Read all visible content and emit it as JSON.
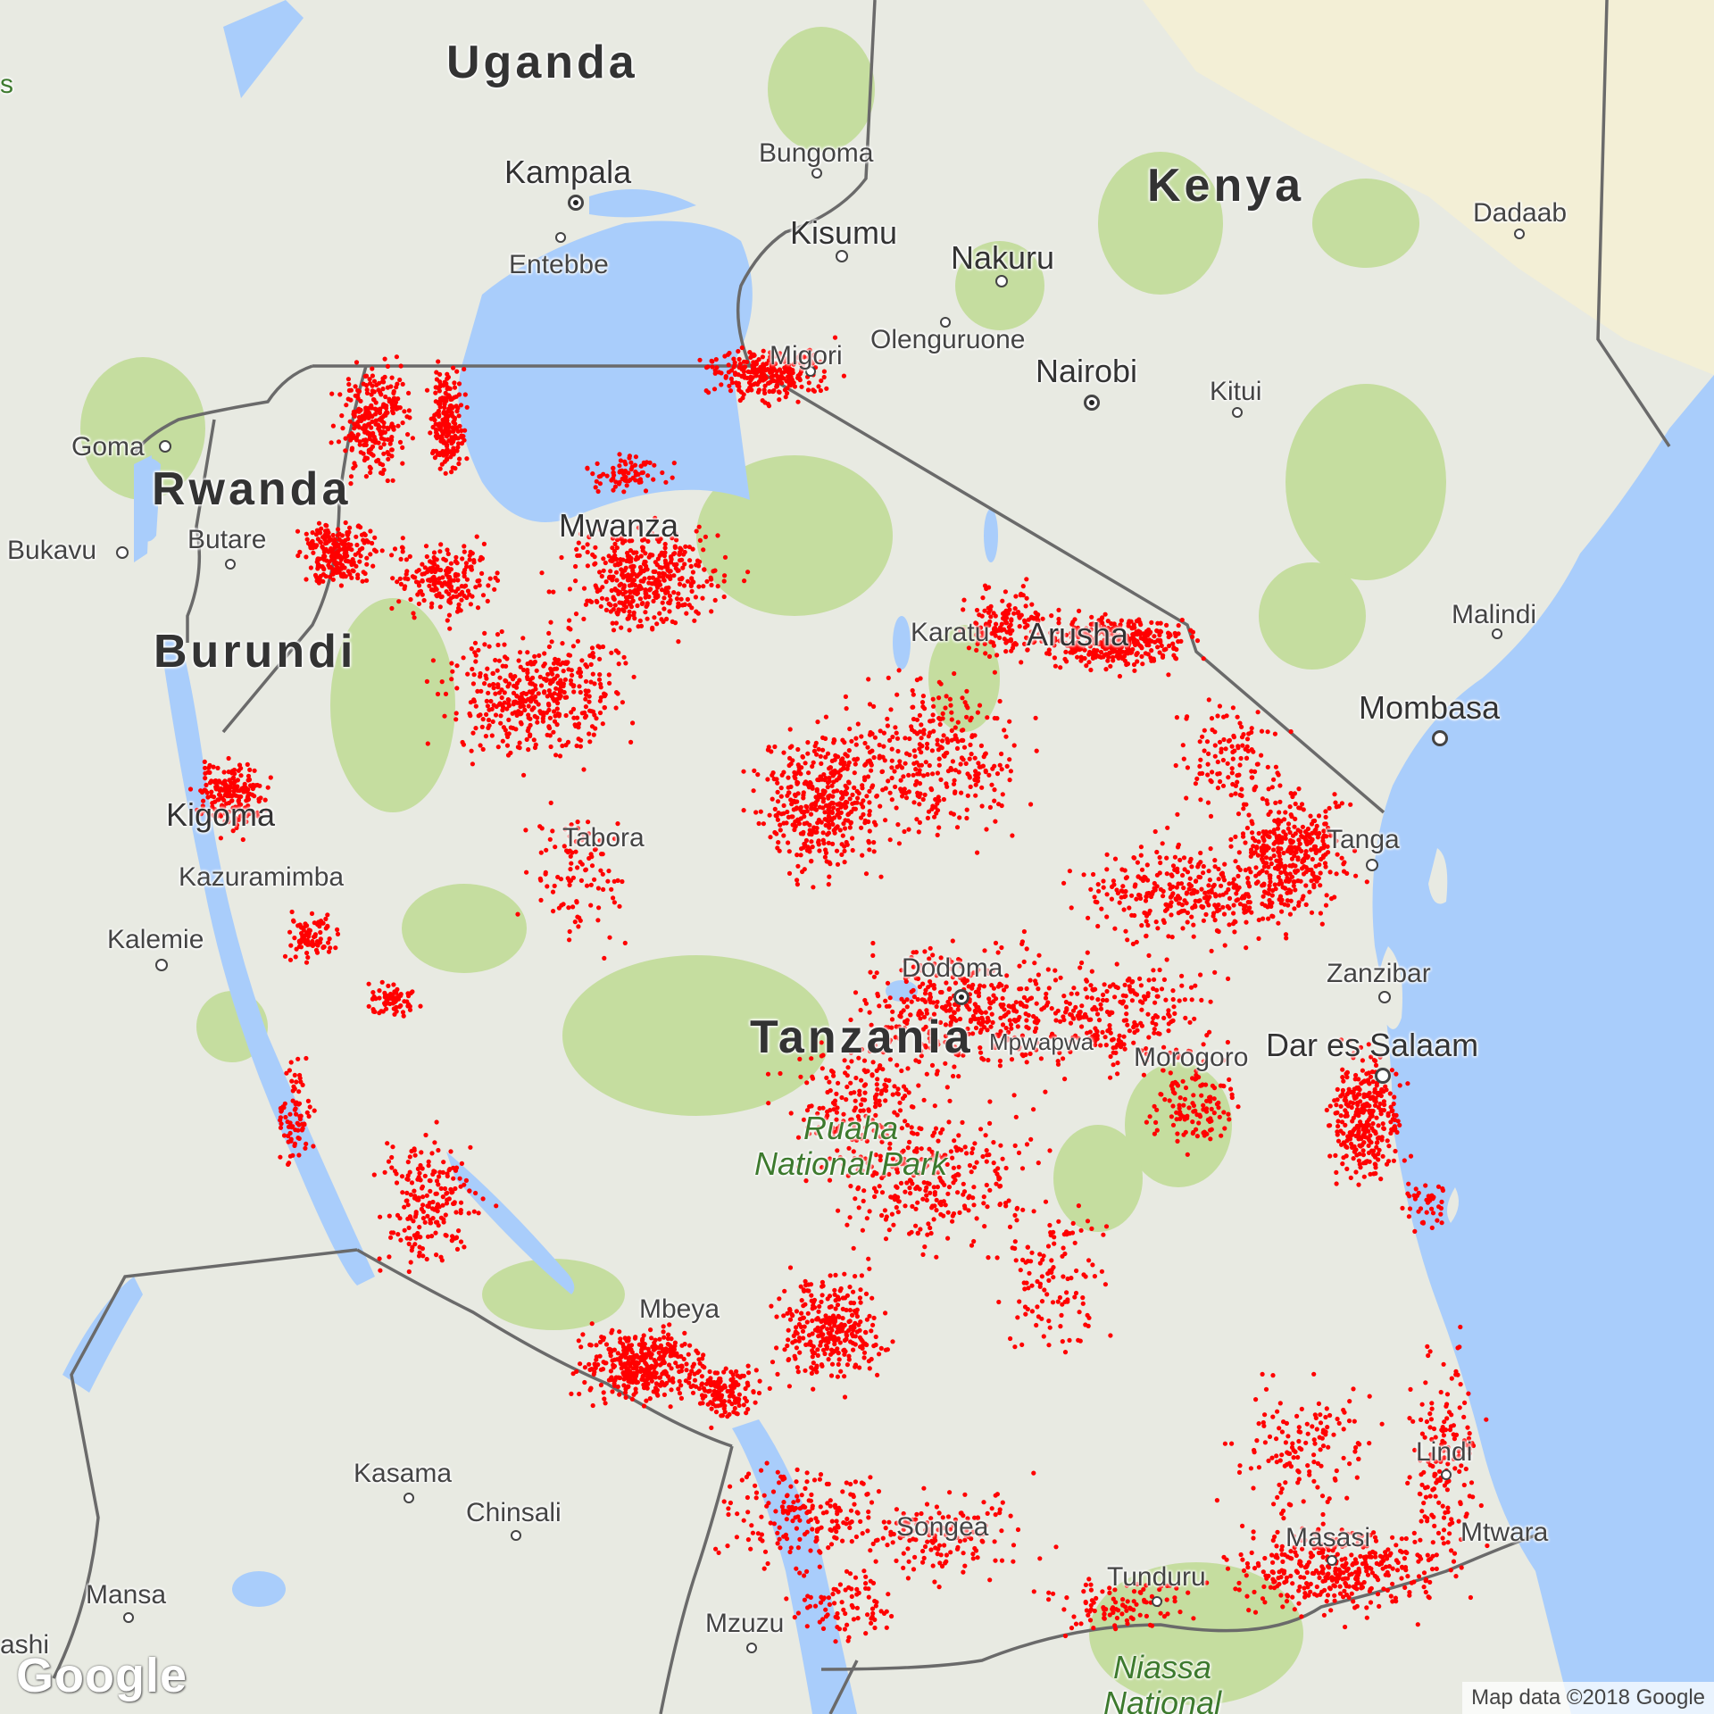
{
  "map": {
    "attribution": "Map data ©2018 Google",
    "logo": "Google",
    "colors": {
      "water": "#a9cdfb",
      "land": "#e8eae2",
      "park": "#bfdc96",
      "border": "#6a6a6a",
      "points": "#ff0000"
    },
    "countries": [
      {
        "id": "uganda",
        "label": "Uganda"
      },
      {
        "id": "kenya",
        "label": "Kenya"
      },
      {
        "id": "rwanda",
        "label": "Rwanda"
      },
      {
        "id": "burundi",
        "label": "Burundi"
      },
      {
        "id": "tanzania",
        "label": "Tanzania"
      }
    ],
    "cities": [
      {
        "id": "kampala",
        "label": "Kampala",
        "capital": true
      },
      {
        "id": "entebbe",
        "label": "Entebbe"
      },
      {
        "id": "bungoma",
        "label": "Bungoma"
      },
      {
        "id": "kisumu",
        "label": "Kisumu"
      },
      {
        "id": "nakuru",
        "label": "Nakuru"
      },
      {
        "id": "olenguruone",
        "label": "Olenguruone"
      },
      {
        "id": "migori",
        "label": "Migori"
      },
      {
        "id": "nairobi",
        "label": "Nairobi",
        "capital": true
      },
      {
        "id": "kitui",
        "label": "Kitui"
      },
      {
        "id": "dadaab",
        "label": "Dadaab"
      },
      {
        "id": "goma",
        "label": "Goma"
      },
      {
        "id": "butare",
        "label": "Butare"
      },
      {
        "id": "bukavu",
        "label": "Bukavu"
      },
      {
        "id": "mwanza",
        "label": "Mwanza"
      },
      {
        "id": "karatu",
        "label": "Karatu"
      },
      {
        "id": "arusha",
        "label": "Arusha"
      },
      {
        "id": "malindi",
        "label": "Malindi"
      },
      {
        "id": "mombasa",
        "label": "Mombasa"
      },
      {
        "id": "kigoma",
        "label": "Kigoma"
      },
      {
        "id": "kazuramimba",
        "label": "Kazuramimba"
      },
      {
        "id": "tabora",
        "label": "Tabora"
      },
      {
        "id": "tanga",
        "label": "Tanga"
      },
      {
        "id": "kalemie",
        "label": "Kalemie"
      },
      {
        "id": "dodoma",
        "label": "Dodoma",
        "capital": true
      },
      {
        "id": "zanzibar",
        "label": "Zanzibar"
      },
      {
        "id": "mpwapwa",
        "label": "Mpwapwa"
      },
      {
        "id": "morogoro",
        "label": "Morogoro"
      },
      {
        "id": "dar",
        "label": "Dar es Salaam"
      },
      {
        "id": "mbeya",
        "label": "Mbeya"
      },
      {
        "id": "kasama",
        "label": "Kasama"
      },
      {
        "id": "chinsali",
        "label": "Chinsali"
      },
      {
        "id": "lindi",
        "label": "Lindi"
      },
      {
        "id": "songea",
        "label": "Songea"
      },
      {
        "id": "masasi",
        "label": "Masasi"
      },
      {
        "id": "mtwara",
        "label": "Mtwara"
      },
      {
        "id": "tunduru",
        "label": "Tunduru"
      },
      {
        "id": "mansa",
        "label": "Mansa"
      },
      {
        "id": "mzuzu",
        "label": "Mzuzu"
      },
      {
        "id": "mbashi",
        "label": "ashi"
      }
    ],
    "parks": [
      {
        "id": "ruaha",
        "line1": "Ruaha",
        "line2": "National Park"
      },
      {
        "id": "niassa",
        "line1": "Niassa",
        "line2": "National"
      }
    ],
    "edge_label": "s"
  }
}
